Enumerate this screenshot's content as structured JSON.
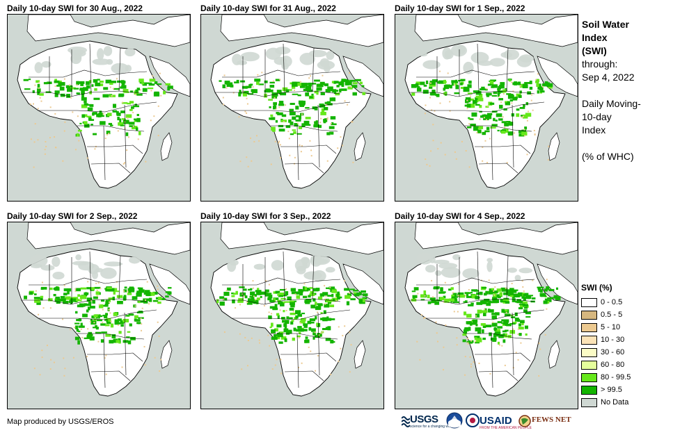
{
  "panels": [
    {
      "title": "Daily 10-day  SWI for 30 Aug., 2022"
    },
    {
      "title": "Daily 10-day  SWI for 31 Aug., 2022"
    },
    {
      "title": "Daily 10-day  SWI for 1  Sep., 2022"
    },
    {
      "title": "Daily 10-day  SWI for 2  Sep., 2022"
    },
    {
      "title": "Daily 10-day  SWI for 3  Sep., 2022"
    },
    {
      "title": "Daily 10-day  SWI for 4  Sep., 2022"
    }
  ],
  "side_info": {
    "title_line1": "Soil Water",
    "title_line2": "Index",
    "title_line3": "(SWI)",
    "through_label": "through:",
    "through_date": "Sep 4, 2022",
    "desc_line1": "Daily Moving-",
    "desc_line2": "10-day",
    "desc_line3": "Index",
    "unit": "(% of WHC)"
  },
  "legend": {
    "title": "SWI (%)",
    "items": [
      {
        "label": "0 - 0.5",
        "color": "#ffffff"
      },
      {
        "label": "0.5 - 5",
        "color": "#d6b77f"
      },
      {
        "label": "5 - 10",
        "color": "#ecc990"
      },
      {
        "label": "10 - 30",
        "color": "#fbe3b7"
      },
      {
        "label": "30 - 60",
        "color": "#fbfcc6"
      },
      {
        "label": "60 - 80",
        "color": "#e5ff9c"
      },
      {
        "label": "80 - 99.5",
        "color": "#66e81b"
      },
      {
        "label": "> 99.5",
        "color": "#13b400"
      },
      {
        "label": "No Data",
        "color": "#cfd8d3"
      }
    ]
  },
  "credit": "Map produced by USGS/EROS",
  "logos": {
    "usgs": "USGS",
    "usgs_tag": "science for a changing world",
    "usaid": "USAID",
    "usaid_tag": "FROM THE AMERICAN PEOPLE",
    "fews": "FEWS NET"
  },
  "colors": {
    "ocean": "#cfd8d3",
    "land": "#ffffff",
    "wet": "#13b400",
    "moist": "#66e81b",
    "dry": "#ecc990"
  }
}
